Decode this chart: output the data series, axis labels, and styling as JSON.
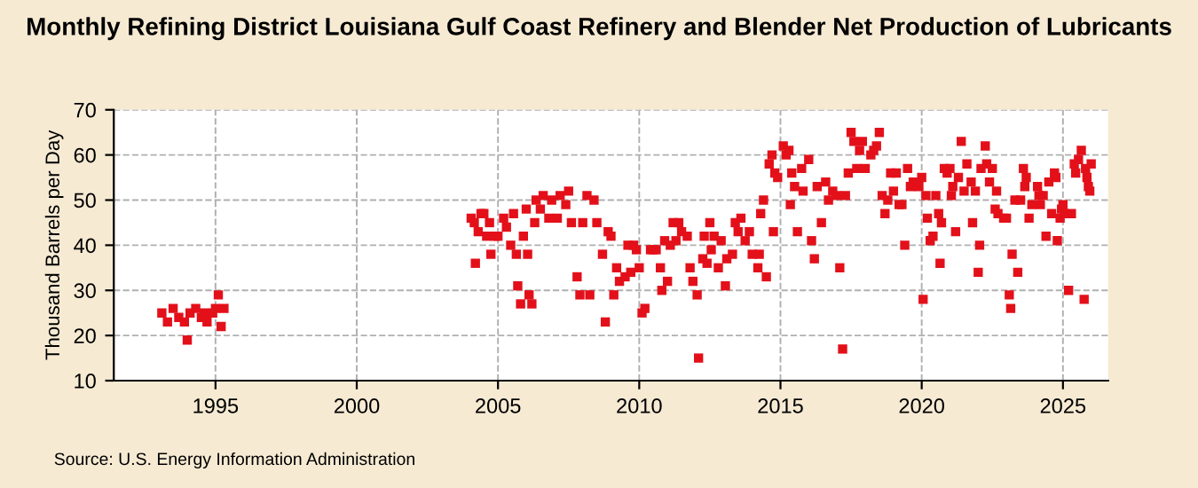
{
  "chart_data": {
    "type": "scatter",
    "title": "Monthly Refining District Louisiana Gulf Coast Refinery and Blender Net Production of Lubricants",
    "ylabel": "Thousand Barrels per Day",
    "annotations": [
      "Source: U.S. Energy Information Administration"
    ],
    "marker": "square",
    "grid": true,
    "xlim": [
      1991.4,
      2026.6
    ],
    "xticks": [
      1995,
      2000,
      2005,
      2010,
      2015,
      2020,
      2025
    ],
    "ylim": [
      10,
      70
    ],
    "yticks": [
      10,
      20,
      30,
      40,
      50,
      60,
      70
    ],
    "series": [
      {
        "color": "#e3101a",
        "x": [
          1993.1,
          1993.3,
          1993.5,
          1993.7,
          1993.9,
          1994.0,
          1994.1,
          1994.3,
          1994.5,
          1994.6,
          1994.7,
          1994.9,
          1995.0,
          1995.1,
          1995.2,
          1995.3,
          2004.05,
          2004.16,
          2004.2,
          2004.3,
          2004.4,
          2004.5,
          2004.6,
          2004.7,
          2004.75,
          2004.9,
          2005.0,
          2005.2,
          2005.3,
          2005.45,
          2005.55,
          2005.65,
          2005.7,
          2005.8,
          2005.9,
          2006.0,
          2006.05,
          2006.1,
          2006.2,
          2006.3,
          2006.35,
          2006.5,
          2006.6,
          2006.8,
          2006.9,
          2007.1,
          2007.2,
          2007.4,
          2007.5,
          2007.6,
          2007.8,
          2007.9,
          2008.0,
          2008.15,
          2008.25,
          2008.4,
          2008.5,
          2008.7,
          2008.8,
          2008.9,
          2009.0,
          2009.1,
          2009.2,
          2009.3,
          2009.5,
          2009.6,
          2009.7,
          2009.8,
          2009.9,
          2010.0,
          2010.1,
          2010.2,
          2010.4,
          2010.5,
          2010.6,
          2010.75,
          2010.8,
          2010.9,
          2011.0,
          2011.1,
          2011.2,
          2011.3,
          2011.4,
          2011.5,
          2011.7,
          2011.8,
          2011.9,
          2012.05,
          2012.1,
          2012.25,
          2012.3,
          2012.4,
          2012.5,
          2012.55,
          2012.65,
          2012.8,
          2012.9,
          2013.05,
          2013.1,
          2013.3,
          2013.4,
          2013.5,
          2013.6,
          2013.75,
          2013.9,
          2014.0,
          2014.2,
          2014.25,
          2014.3,
          2014.4,
          2014.5,
          2014.6,
          2014.7,
          2014.75,
          2014.8,
          2014.9,
          2015.1,
          2015.2,
          2015.3,
          2015.35,
          2015.4,
          2015.5,
          2015.6,
          2015.75,
          2015.8,
          2016.0,
          2016.1,
          2016.2,
          2016.3,
          2016.45,
          2016.6,
          2016.7,
          2016.85,
          2017.0,
          2017.1,
          2017.2,
          2017.3,
          2017.4,
          2017.5,
          2017.6,
          2017.7,
          2017.8,
          2017.9,
          2018.0,
          2018.2,
          2018.3,
          2018.4,
          2018.5,
          2018.6,
          2018.7,
          2018.8,
          2018.9,
          2019.0,
          2019.1,
          2019.2,
          2019.3,
          2019.4,
          2019.5,
          2019.6,
          2019.7,
          2019.9,
          2020.0,
          2020.05,
          2020.15,
          2020.2,
          2020.3,
          2020.4,
          2020.5,
          2020.6,
          2020.65,
          2020.7,
          2020.8,
          2020.9,
          2021.0,
          2021.05,
          2021.1,
          2021.2,
          2021.3,
          2021.4,
          2021.5,
          2021.6,
          2021.75,
          2021.8,
          2021.9,
          2022.0,
          2022.05,
          2022.1,
          2022.25,
          2022.3,
          2022.4,
          2022.5,
          2022.6,
          2022.65,
          2022.7,
          2022.9,
          2023.0,
          2023.1,
          2023.15,
          2023.2,
          2023.3,
          2023.4,
          2023.5,
          2023.6,
          2023.65,
          2023.7,
          2023.8,
          2023.9,
          2024.1,
          2024.15,
          2024.2,
          2024.3,
          2024.4,
          2024.5,
          2024.6,
          2024.7,
          2024.75,
          2024.8,
          2024.9,
          2024.95,
          2025.0,
          2025.05,
          2025.2,
          2025.3,
          2025.4,
          2025.45,
          2025.55,
          2025.65,
          2025.75,
          2025.8,
          2025.85,
          2025.9,
          2025.95,
          2026.0
        ],
        "values": [
          25,
          23,
          26,
          24,
          23,
          19,
          25,
          26,
          24,
          25,
          23,
          25,
          26,
          29,
          22,
          26,
          46,
          45,
          36,
          43,
          47,
          47,
          42,
          45,
          38,
          42,
          42,
          46,
          44,
          40,
          47,
          38,
          31,
          27,
          42,
          48,
          38,
          29,
          27,
          45,
          50,
          48,
          51,
          46,
          50,
          46,
          51,
          49,
          52,
          45,
          33,
          29,
          45,
          51,
          29,
          50,
          45,
          38,
          23,
          43,
          42,
          29,
          35,
          32,
          33,
          40,
          34,
          40,
          39,
          35,
          25,
          26,
          39,
          39,
          39,
          35,
          30,
          41,
          32,
          40,
          45,
          41,
          45,
          43,
          42,
          35,
          32,
          29,
          15,
          37,
          42,
          36,
          45,
          39,
          42,
          35,
          41,
          31,
          37,
          38,
          45,
          43,
          46,
          41,
          43,
          38,
          35,
          38,
          47,
          50,
          33,
          58,
          60,
          43,
          56,
          55,
          62,
          60,
          61,
          49,
          56,
          53,
          43,
          57,
          52,
          59,
          41,
          37,
          53,
          45,
          54,
          50,
          52,
          51,
          35,
          17,
          51,
          56,
          65,
          63,
          57,
          61,
          63,
          57,
          60,
          61,
          62,
          65,
          51,
          47,
          50,
          56,
          52,
          56,
          49,
          49,
          40,
          57,
          53,
          54,
          53,
          55,
          28,
          51,
          46,
          41,
          42,
          51,
          47,
          36,
          45,
          57,
          56,
          57,
          51,
          53,
          43,
          55,
          63,
          52,
          58,
          54,
          45,
          52,
          34,
          40,
          57,
          62,
          58,
          54,
          57,
          48,
          52,
          47,
          46,
          46,
          29,
          26,
          38,
          50,
          34,
          50,
          57,
          53,
          55,
          46,
          49,
          53,
          51,
          49,
          51,
          42,
          54,
          47,
          56,
          55,
          41,
          46,
          48,
          49,
          47,
          30,
          47,
          58,
          56,
          59,
          61,
          28,
          57,
          55,
          53,
          52,
          58
        ]
      }
    ]
  }
}
